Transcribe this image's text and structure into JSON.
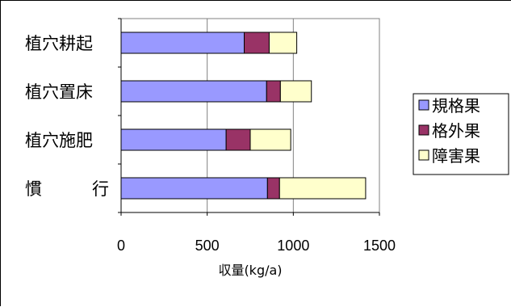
{
  "chart_data": {
    "type": "bar",
    "orientation": "horizontal",
    "stacked": true,
    "title": "",
    "xlabel": "収量(kg/a)",
    "ylabel": "",
    "xlim": [
      0,
      1500
    ],
    "xticks": [
      0,
      500,
      1000,
      1500
    ],
    "grid": true,
    "legend_position": "right",
    "categories": [
      "植穴耕起",
      "植穴置床",
      "植穴施肥",
      "慣　行"
    ],
    "series": [
      {
        "name": "規格果",
        "color": "#9999ff",
        "values": [
          715,
          845,
          610,
          850
        ]
      },
      {
        "name": "格外果",
        "color": "#993366",
        "values": [
          145,
          80,
          140,
          70
        ]
      },
      {
        "name": "障害果",
        "color": "#ffffcc",
        "values": [
          160,
          180,
          235,
          500
        ]
      }
    ]
  }
}
